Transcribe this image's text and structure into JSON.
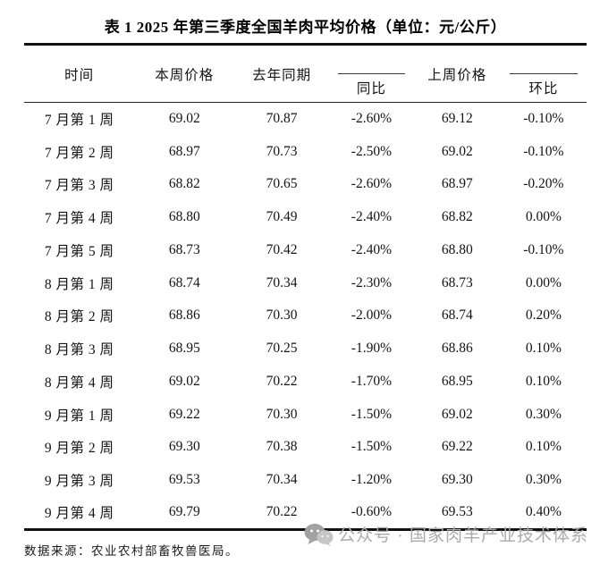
{
  "title": "表 1  2025 年第三季度全国羊肉平均价格（单位：元/公斤）",
  "table": {
    "columns": [
      "时间",
      "本周价格",
      "去年同期",
      "同比",
      "上周价格",
      "环比"
    ],
    "rows": [
      [
        "7 月第 1 周",
        "69.02",
        "70.87",
        "-2.60%",
        "69.12",
        "-0.10%"
      ],
      [
        "7 月第 2 周",
        "68.97",
        "70.73",
        "-2.50%",
        "69.02",
        "-0.10%"
      ],
      [
        "7 月第 3 周",
        "68.82",
        "70.65",
        "-2.60%",
        "68.97",
        "-0.20%"
      ],
      [
        "7 月第 4 周",
        "68.80",
        "70.49",
        "-2.40%",
        "68.82",
        "0.00%"
      ],
      [
        "7 月第 5 周",
        "68.73",
        "70.42",
        "-2.40%",
        "68.80",
        "-0.10%"
      ],
      [
        "8 月第 1 周",
        "68.74",
        "70.34",
        "-2.30%",
        "68.73",
        "0.00%"
      ],
      [
        "8 月第 2 周",
        "68.86",
        "70.30",
        "-2.00%",
        "68.74",
        "0.20%"
      ],
      [
        "8 月第 3 周",
        "68.95",
        "70.25",
        "-1.90%",
        "68.86",
        "0.10%"
      ],
      [
        "8 月第 4 周",
        "69.02",
        "70.22",
        "-1.70%",
        "68.95",
        "0.10%"
      ],
      [
        "9 月第 1 周",
        "69.22",
        "70.30",
        "-1.50%",
        "69.02",
        "0.30%"
      ],
      [
        "9 月第 2 周",
        "69.30",
        "70.38",
        "-1.50%",
        "69.22",
        "0.10%"
      ],
      [
        "9 月第 3 周",
        "69.53",
        "70.34",
        "-1.20%",
        "69.30",
        "0.30%"
      ],
      [
        "9 月第 4 周",
        "69.79",
        "70.22",
        "-0.60%",
        "69.53",
        "0.40%"
      ]
    ]
  },
  "footer": {
    "source": "数据来源：农业农村部畜牧兽医局。"
  },
  "watermark": {
    "icon": "wechat-icon",
    "text": "公众号 · 国家肉羊产业技术体系",
    "color": "#ababab"
  },
  "colors": {
    "background": "#ffffff",
    "text": "#141414",
    "border": "#111111",
    "watermark": "#ababab"
  }
}
